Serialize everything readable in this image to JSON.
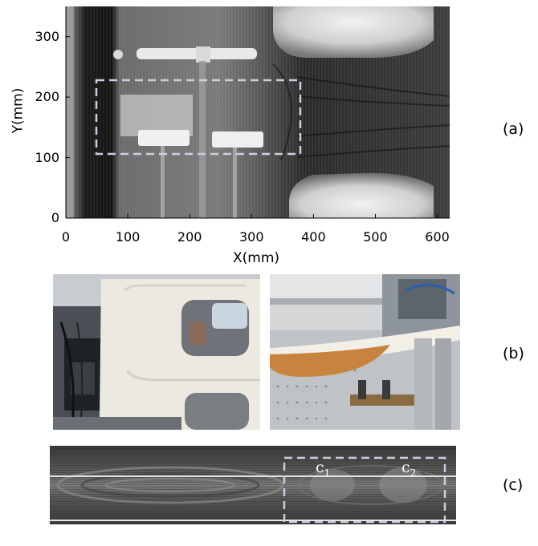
{
  "figure": {
    "panels": [
      {
        "label": "(a)"
      },
      {
        "label": "(b)"
      },
      {
        "label": "(c)"
      }
    ]
  },
  "panel_a": {
    "xlabel": "X(mm)",
    "ylabel": "Y(mm)",
    "xticks": [
      "0",
      "100",
      "200",
      "300",
      "400",
      "500",
      "600"
    ],
    "yticks": [
      "0",
      "100",
      "200",
      "300"
    ],
    "xlim": [
      0,
      620
    ],
    "ylim": [
      0,
      350
    ]
  },
  "panel_c": {
    "c1": "c",
    "c1_sub": "1",
    "c2": "c",
    "c2_sub": "2"
  },
  "colors": {
    "dashed_box": "#c9d1e0",
    "scan_dark": "#1c1c1c",
    "panel_bg": "#ffffff"
  }
}
